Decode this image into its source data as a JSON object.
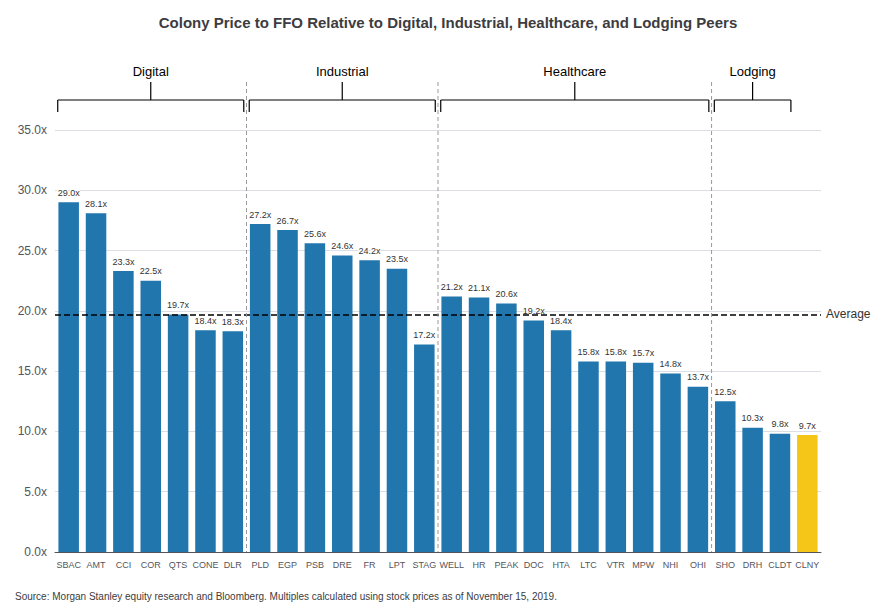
{
  "chart_data": {
    "type": "bar",
    "title": "Colony Price to FFO Relative to Digital, Industrial, Healthcare, and Lodging Peers",
    "source": "Source: Morgan Stanley equity research and Bloomberg. Multiples calculated using stock prices as of November 15, 2019.",
    "categories": [
      "SBAC",
      "AMT",
      "CCI",
      "COR",
      "QTS",
      "CONE",
      "DLR",
      "PLD",
      "EGP",
      "PSB",
      "DRE",
      "FR",
      "LPT",
      "STAG",
      "WELL",
      "HR",
      "PEAK",
      "DOC",
      "HTA",
      "LTC",
      "VTR",
      "MPW",
      "NHI",
      "OHI",
      "SHO",
      "DRH",
      "CLDT",
      "CLNY"
    ],
    "values": [
      29.0,
      28.1,
      23.3,
      22.5,
      19.7,
      18.4,
      18.3,
      27.2,
      26.7,
      25.6,
      24.6,
      24.2,
      23.5,
      17.2,
      21.2,
      21.1,
      20.6,
      19.2,
      18.4,
      15.8,
      15.8,
      15.7,
      14.8,
      13.7,
      12.5,
      10.3,
      9.8,
      9.7
    ],
    "value_labels": [
      "29.0x",
      "28.1x",
      "23.3x",
      "22.5x",
      "19.7x",
      "18.4x",
      "18.3x",
      "27.2x",
      "26.7x",
      "25.6x",
      "24.6x",
      "24.2x",
      "23.5x",
      "17.2x",
      "21.2x",
      "21.1x",
      "20.6x",
      "19.2x",
      "18.4x",
      "15.8x",
      "15.8x",
      "15.7x",
      "14.8x",
      "13.7x",
      "12.5x",
      "10.3x",
      "9.8x",
      "9.7x"
    ],
    "data_labels": true,
    "colors": [
      "#2176ae",
      "#2176ae",
      "#2176ae",
      "#2176ae",
      "#2176ae",
      "#2176ae",
      "#2176ae",
      "#2176ae",
      "#2176ae",
      "#2176ae",
      "#2176ae",
      "#2176ae",
      "#2176ae",
      "#2176ae",
      "#2176ae",
      "#2176ae",
      "#2176ae",
      "#2176ae",
      "#2176ae",
      "#2176ae",
      "#2176ae",
      "#2176ae",
      "#2176ae",
      "#2176ae",
      "#2176ae",
      "#2176ae",
      "#2176ae",
      "#f5c518"
    ],
    "ylim": [
      0,
      35
    ],
    "yticks": [
      {
        "value": 0,
        "label": "0.0x"
      },
      {
        "value": 5,
        "label": "5.0x"
      },
      {
        "value": 10,
        "label": "10.0x"
      },
      {
        "value": 15,
        "label": "15.0x"
      },
      {
        "value": 20,
        "label": "20.0x"
      },
      {
        "value": 25,
        "label": "25.0x"
      },
      {
        "value": 30,
        "label": "30.0x"
      },
      {
        "value": 35,
        "label": "35.0x"
      }
    ],
    "grid": true,
    "average_line": {
      "value": 19.7,
      "label": "Average",
      "color": "#000000"
    },
    "groups": [
      {
        "label": "Digital",
        "from": "SBAC",
        "to": "DLR",
        "color": "#000000"
      },
      {
        "label": "Industrial",
        "from": "PLD",
        "to": "STAG",
        "color": "#000000"
      },
      {
        "label": "Healthcare",
        "from": "WELL",
        "to": "OHI",
        "color": "#000000"
      },
      {
        "label": "Lodging",
        "from": "SHO",
        "to": "CLDT",
        "color": "#000000"
      }
    ],
    "separators": {
      "before": [
        "PLD",
        "WELL",
        "SHO"
      ],
      "color": "#999999"
    }
  }
}
